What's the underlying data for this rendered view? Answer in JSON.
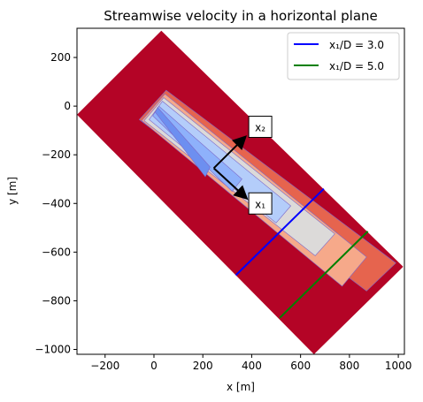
{
  "chart_data": {
    "type": "contour",
    "title": "Streamwise velocity in a horizontal plane",
    "xlabel": "x [m]",
    "ylabel": "y [m]",
    "xlim": [
      -315,
      1025
    ],
    "ylim": [
      -1020,
      320
    ],
    "xticks": [
      -200,
      0,
      200,
      400,
      600,
      800,
      1000
    ],
    "yticks": [
      200,
      0,
      -200,
      -400,
      -600,
      -800,
      -1000
    ],
    "grid": false,
    "legend_position": "upper right",
    "colormap": "coolwarm",
    "domain_corners": [
      [
        -315,
        -35
      ],
      [
        30,
        310
      ],
      [
        1020,
        -660
      ],
      [
        655,
        -1020
      ]
    ],
    "wake_regions": [
      {
        "level": "light-red",
        "color": "#e6644e",
        "polygon": [
          [
            -60,
            -55
          ],
          [
            50,
            65
          ],
          [
            990,
            -645
          ],
          [
            870,
            -760
          ]
        ]
      },
      {
        "level": "salmon",
        "color": "#f6a98a",
        "polygon": [
          [
            -50,
            -60
          ],
          [
            45,
            50
          ],
          [
            870,
            -620
          ],
          [
            770,
            -740
          ]
        ]
      },
      {
        "level": "light-grey",
        "color": "#dcdad9",
        "polygon": [
          [
            -40,
            -60
          ],
          [
            40,
            35
          ],
          [
            740,
            -525
          ],
          [
            660,
            -615
          ]
        ]
      },
      {
        "level": "light-blue",
        "color": "#b4cdfa",
        "polygon": [
          [
            -20,
            -55
          ],
          [
            35,
            20
          ],
          [
            560,
            -410
          ],
          [
            500,
            -480
          ]
        ]
      },
      {
        "level": "blue",
        "color": "#8eb1fb",
        "polygon": [
          [
            -5,
            -40
          ],
          [
            20,
            0
          ],
          [
            360,
            -300
          ],
          [
            320,
            -350
          ]
        ]
      },
      {
        "level": "dark-blue",
        "color": "#6d8ff0",
        "polygon": [
          [
            5,
            -25
          ],
          [
            15,
            -5
          ],
          [
            230,
            -250
          ],
          [
            210,
            -290
          ]
        ]
      }
    ],
    "series": [
      {
        "name": "$x_1/D = 3.0$",
        "label": "x₁/D = 3.0",
        "color": "#0000ff",
        "x": [
          335,
          695
        ],
        "y": [
          -695,
          -340
        ]
      },
      {
        "name": "$x_1/D = 5.0$",
        "label": "x₁/D = 5.0",
        "color": "#008000",
        "x": [
          515,
          875
        ],
        "y": [
          -870,
          -515
        ]
      }
    ],
    "annotations": [
      {
        "text": "x₂",
        "x": 435,
        "y": -85
      },
      {
        "text": "x₁",
        "x": 435,
        "y": -400
      }
    ],
    "arrows": [
      {
        "from": [
          245,
          -255
        ],
        "to": [
          370,
          -130
        ],
        "label": "x₂"
      },
      {
        "from": [
          245,
          -255
        ],
        "to": [
          375,
          -375
        ],
        "label": "x₁"
      }
    ]
  }
}
